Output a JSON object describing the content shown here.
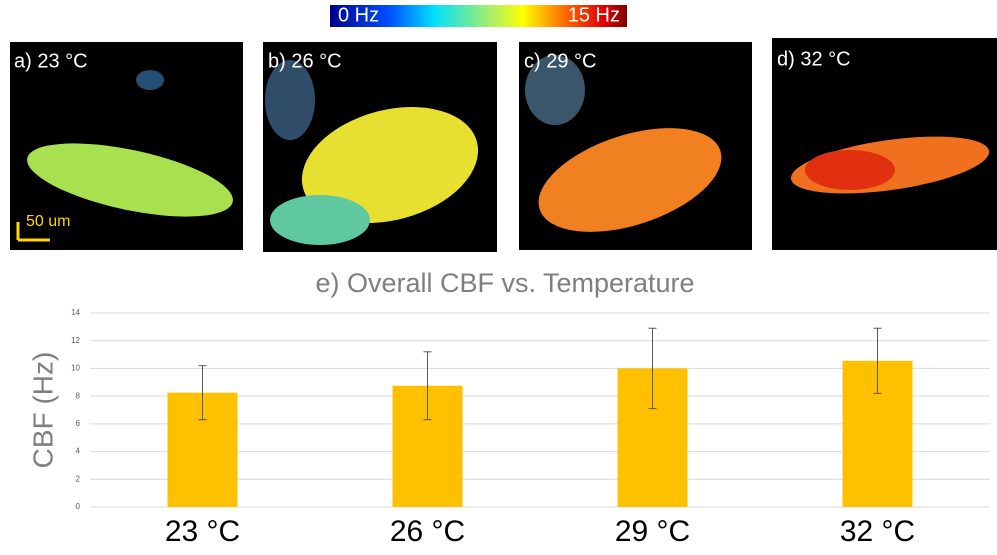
{
  "figure": {
    "colorbar": {
      "min_label": "0 Hz",
      "max_label": "15 Hz"
    },
    "panels": [
      "a) 23 °C",
      "b) 26 °C",
      "c) 29 °C",
      "d) 32 °C"
    ],
    "scale_bar": "50 um"
  },
  "chart_data": {
    "type": "bar",
    "title": "e) Overall CBF vs. Temperature",
    "y_label": "CBF  (Hz)",
    "categories": [
      "23 °C",
      "26 °C",
      "29 °C",
      "32 °C"
    ],
    "values": [
      8.25,
      8.75,
      10.0,
      10.55
    ],
    "errors": [
      1.95,
      2.45,
      2.9,
      2.35
    ],
    "color": "#ffc000",
    "ylim": [
      0,
      14
    ],
    "yticks": [
      0,
      2,
      4,
      6,
      8,
      10,
      12,
      14
    ],
    "grid": true
  }
}
